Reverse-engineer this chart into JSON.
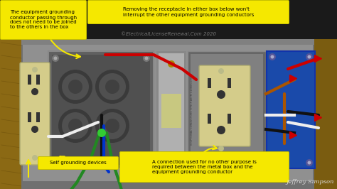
{
  "bg_color": "#1a1a1a",
  "wall_color_left": "#8B6914",
  "wall_color_right": "#7a5c10",
  "panel_bg": "#707070",
  "panel_inner": "#909090",
  "outlet_color": "#d4cc8a",
  "blue_box_color": "#1a4aaa",
  "switch_bg": "#888888",
  "switch_inner": "#b0b0b0",
  "switch_toggle": "#c8c880",
  "watermark": "©ElectricalLicenseRenewal.Com 2020",
  "author": "Jeffrey Simpson",
  "annotation1": "The equipment grounding\nconductor passing through\ndoes not need to be joined\nto the others in the box",
  "annotation2": "Removing the receptacle in either box below won't\ninterrupt the other equipment grounding conductors",
  "annotation3": "Self grounding devices",
  "annotation4": "A connection used for no other purpose is\nrequired between the metal box and the\nequipment grounding conductor",
  "yellow_fill": "#f5e800",
  "yellow_edge": "#c8c000",
  "wire_red": "#cc0000",
  "wire_black": "#111111",
  "wire_white": "#eeeeee",
  "wire_blue": "#0033cc",
  "wire_green": "#228822",
  "wire_brown": "#aa5500",
  "metal_box_color": "#606060",
  "metal_box_inner": "#505050",
  "screw_color": "#999999",
  "knockout_outer": "#3a3a3a",
  "knockout_inner": "#505050",
  "green_dot": "#33cc33"
}
